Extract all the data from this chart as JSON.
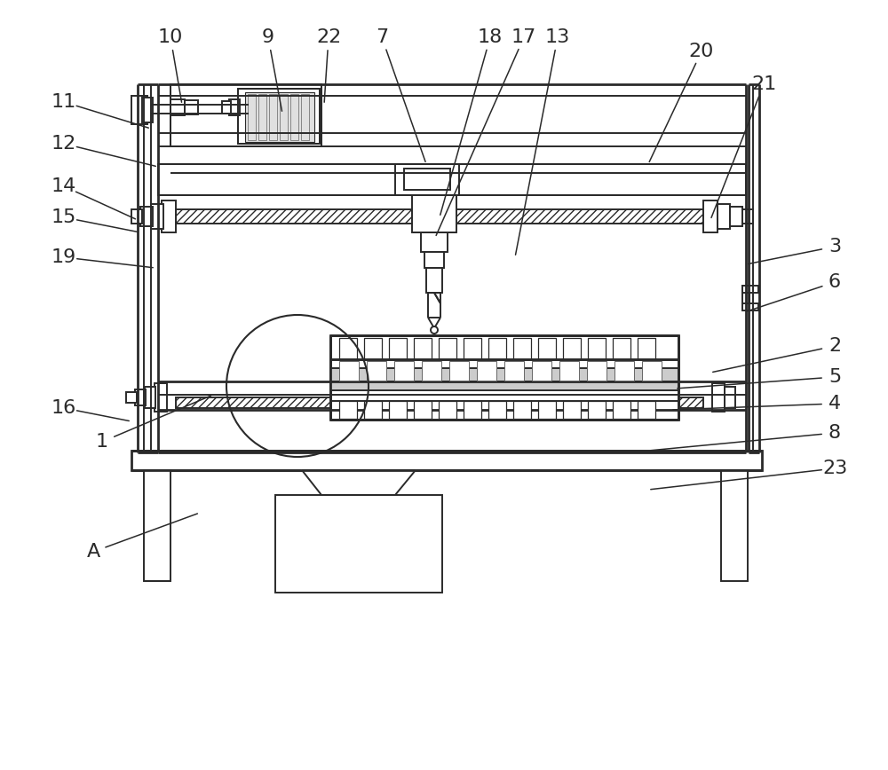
{
  "bg": "#ffffff",
  "lc": "#2a2a2a",
  "lw": 1.4,
  "tlw": 2.0,
  "dpi": 100,
  "fig_w": 10.0,
  "fig_h": 8.68,
  "labels": [
    [
      "10",
      192,
      42,
      205,
      118
    ],
    [
      "9",
      302,
      42,
      318,
      128
    ],
    [
      "22",
      370,
      42,
      365,
      118
    ],
    [
      "7",
      430,
      42,
      480,
      185
    ],
    [
      "18",
      552,
      42,
      495,
      245
    ],
    [
      "17",
      590,
      42,
      490,
      268
    ],
    [
      "13",
      628,
      42,
      580,
      290
    ],
    [
      "20",
      790,
      58,
      730,
      185
    ],
    [
      "21",
      860,
      95,
      800,
      248
    ],
    [
      "11",
      72,
      115,
      170,
      145
    ],
    [
      "12",
      72,
      162,
      178,
      188
    ],
    [
      "14",
      72,
      210,
      155,
      248
    ],
    [
      "15",
      72,
      245,
      158,
      262
    ],
    [
      "19",
      72,
      290,
      175,
      302
    ],
    [
      "3",
      940,
      278,
      840,
      298
    ],
    [
      "6",
      940,
      318,
      838,
      352
    ],
    [
      "2",
      940,
      390,
      800,
      420
    ],
    [
      "5",
      940,
      425,
      760,
      438
    ],
    [
      "4",
      940,
      455,
      755,
      462
    ],
    [
      "8",
      940,
      488,
      730,
      508
    ],
    [
      "23",
      940,
      528,
      730,
      552
    ],
    [
      "1",
      115,
      498,
      240,
      445
    ],
    [
      "16",
      72,
      460,
      148,
      475
    ],
    [
      "A",
      105,
      622,
      225,
      578
    ]
  ]
}
